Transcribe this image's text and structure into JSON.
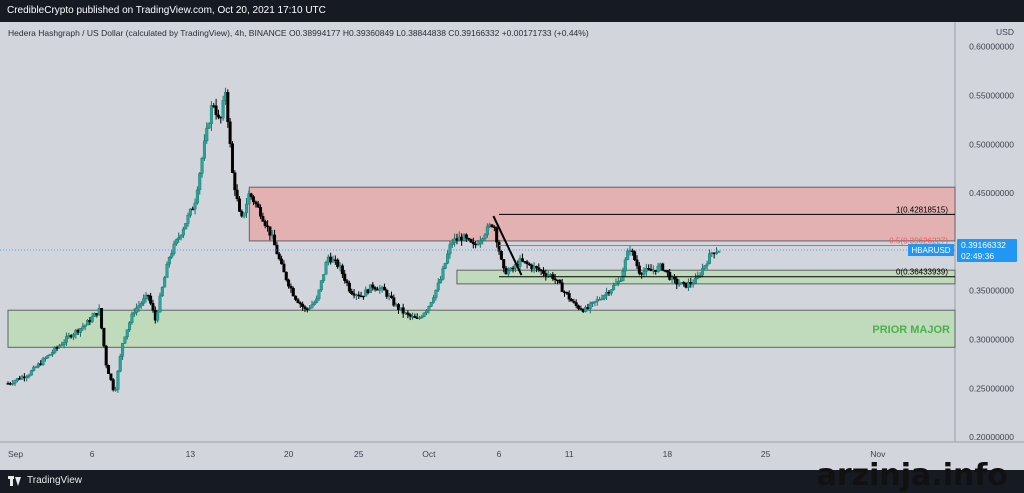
{
  "header": {
    "publish_line": "CredibleCrypto published on TradingView.com, Oct 20, 2021 17:10 UTC"
  },
  "footer": {
    "brand": "TradingView",
    "watermark": "arzinja.info"
  },
  "chart_data": {
    "type": "candlestick",
    "symbol_line": "Hedera Hashgraph / US Dollar (calculated by TradingView), 4h, BINANCE",
    "ohlc": {
      "open": "0.38994177",
      "high": "0.39360849",
      "low": "0.38844838",
      "close": "0.39166332",
      "change": "+0.00171733 (+0.44%)"
    },
    "ohlc_labels": {
      "open": "O",
      "high": "H",
      "low": "L",
      "close": "C"
    },
    "currency": "USD",
    "ylim": [
      0.195,
      0.615
    ],
    "y_ticks": [
      {
        "value": 0.6,
        "label": "0.60000000"
      },
      {
        "value": 0.55,
        "label": "0.55000000"
      },
      {
        "value": 0.5,
        "label": "0.50000000"
      },
      {
        "value": 0.45,
        "label": "0.45000000"
      },
      {
        "value": 0.4,
        "label": "0.40000000"
      },
      {
        "value": 0.35,
        "label": "0.35000000"
      },
      {
        "value": 0.3,
        "label": "0.30000000"
      },
      {
        "value": 0.25,
        "label": "0.25000000"
      },
      {
        "value": 0.2,
        "label": "0.20000000"
      }
    ],
    "x_ticks": [
      {
        "day": 0,
        "label": "Sep"
      },
      {
        "day": 6,
        "label": "6"
      },
      {
        "day": 13,
        "label": "13"
      },
      {
        "day": 20,
        "label": "20"
      },
      {
        "day": 25,
        "label": "25"
      },
      {
        "day": 30,
        "label": "Oct"
      },
      {
        "day": 35,
        "label": "6"
      },
      {
        "day": 40,
        "label": "11"
      },
      {
        "day": 47,
        "label": "18"
      },
      {
        "day": 54,
        "label": "25"
      },
      {
        "day": 62,
        "label": "Nov"
      }
    ],
    "xlim_days": [
      0,
      67.5
    ],
    "price_points": [
      [
        0.0,
        0.255
      ],
      [
        1.5,
        0.265
      ],
      [
        3.0,
        0.285
      ],
      [
        4.5,
        0.305
      ],
      [
        5.5,
        0.315
      ],
      [
        6.5,
        0.33
      ],
      [
        7.0,
        0.275
      ],
      [
        7.6,
        0.245
      ],
      [
        8.2,
        0.3
      ],
      [
        9.0,
        0.33
      ],
      [
        10.0,
        0.345
      ],
      [
        10.5,
        0.32
      ],
      [
        11.5,
        0.385
      ],
      [
        12.5,
        0.415
      ],
      [
        13.3,
        0.44
      ],
      [
        14.0,
        0.5
      ],
      [
        14.6,
        0.545
      ],
      [
        15.1,
        0.52
      ],
      [
        15.5,
        0.555
      ],
      [
        16.0,
        0.47
      ],
      [
        16.6,
        0.42
      ],
      [
        17.2,
        0.45
      ],
      [
        18.0,
        0.43
      ],
      [
        18.8,
        0.405
      ],
      [
        19.6,
        0.37
      ],
      [
        20.4,
        0.345
      ],
      [
        21.2,
        0.33
      ],
      [
        22.0,
        0.34
      ],
      [
        22.8,
        0.385
      ],
      [
        23.6,
        0.375
      ],
      [
        24.4,
        0.35
      ],
      [
        25.2,
        0.345
      ],
      [
        26.0,
        0.355
      ],
      [
        26.8,
        0.35
      ],
      [
        27.6,
        0.335
      ],
      [
        28.4,
        0.325
      ],
      [
        29.2,
        0.32
      ],
      [
        30.0,
        0.335
      ],
      [
        30.8,
        0.36
      ],
      [
        31.6,
        0.4
      ],
      [
        32.4,
        0.405
      ],
      [
        33.2,
        0.395
      ],
      [
        34.0,
        0.41
      ],
      [
        34.6,
        0.42
      ],
      [
        35.3,
        0.37
      ],
      [
        35.8,
        0.37
      ],
      [
        36.5,
        0.38
      ],
      [
        37.3,
        0.375
      ],
      [
        38.0,
        0.37
      ],
      [
        38.8,
        0.365
      ],
      [
        39.6,
        0.35
      ],
      [
        40.4,
        0.335
      ],
      [
        41.2,
        0.33
      ],
      [
        42.0,
        0.34
      ],
      [
        42.8,
        0.35
      ],
      [
        43.6,
        0.36
      ],
      [
        44.3,
        0.395
      ],
      [
        45.0,
        0.37
      ],
      [
        45.8,
        0.37
      ],
      [
        46.6,
        0.375
      ],
      [
        47.4,
        0.36
      ],
      [
        48.2,
        0.355
      ],
      [
        49.0,
        0.36
      ],
      [
        49.6,
        0.375
      ],
      [
        50.2,
        0.39
      ],
      [
        50.7,
        0.3917
      ]
    ],
    "zones": [
      {
        "name": "supply-zone",
        "x_start_day": 17.2,
        "y_low": 0.401,
        "y_high": 0.456,
        "fill": "#e8a4a4",
        "stroke": "#5f6368"
      },
      {
        "name": "support-zone",
        "x_start_day": 32.0,
        "y_low": 0.357,
        "y_high": 0.371,
        "fill": "#b9dcb2",
        "stroke": "#5f6368"
      },
      {
        "name": "prior-major-zone",
        "x_start_day": 0.0,
        "y_low": 0.292,
        "y_high": 0.33,
        "fill": "#b9dcb2",
        "stroke": "#5f6368"
      }
    ],
    "zone_label": {
      "text": "PRIOR MAJOR",
      "color": "#4caf50"
    },
    "fib_lines": [
      {
        "label": "1(0.42818515)",
        "value": 0.42818515,
        "color": "#000000"
      },
      {
        "label": "0.5(0.39626227)",
        "value": 0.39626227,
        "color": "#f05a5a"
      },
      {
        "label": "0(0.36433939)",
        "value": 0.36433939,
        "color": "#000000"
      }
    ],
    "fib_x_start_day": 35.0,
    "drawn_line": {
      "x1_day": 34.6,
      "y1": 0.4265,
      "x2_day": 36.6,
      "y2": 0.366
    },
    "last_price": {
      "value": 0.39166332,
      "label": "0.39166332",
      "symbol": "HBARUSD",
      "countdown": "02:49:36",
      "color": "#2196f3"
    },
    "colors": {
      "up": "#26a69a",
      "down": "#000000",
      "chart_bg": "#d2d5dc",
      "axis_text": "#3f4350"
    }
  }
}
